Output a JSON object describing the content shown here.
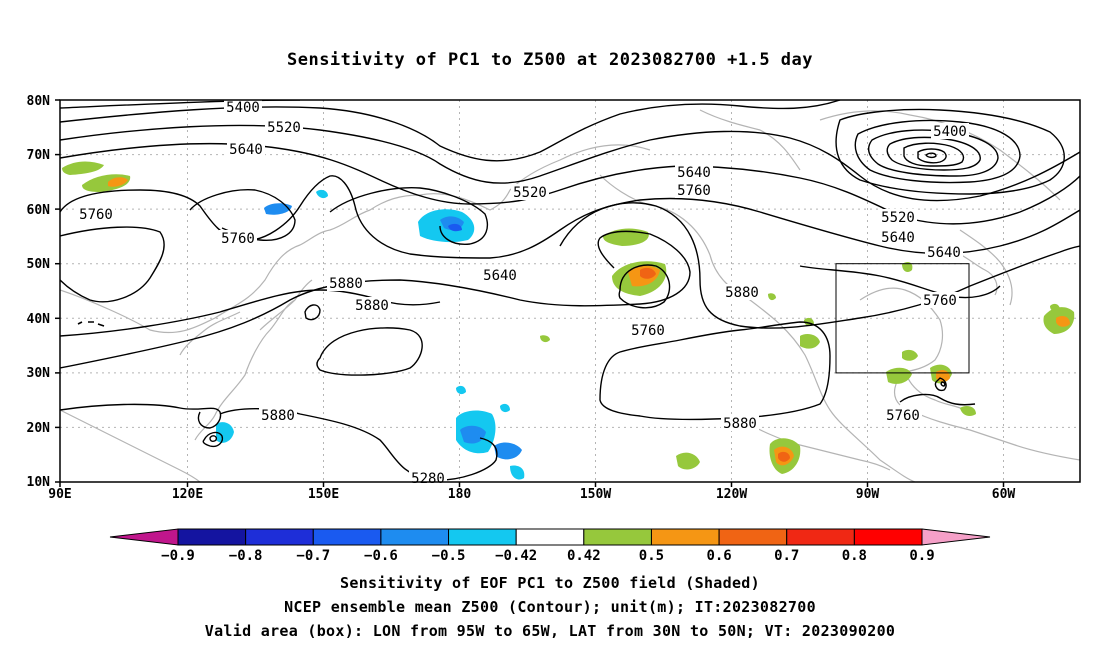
{
  "title": "Sensitivity of PC1 to Z500 at 2023082700 +1.5 day",
  "map": {
    "lat_labels": [
      "80N",
      "70N",
      "60N",
      "50N",
      "40N",
      "30N",
      "20N",
      "10N"
    ],
    "lon_labels": [
      "90E",
      "120E",
      "150E",
      "180",
      "150W",
      "120W",
      "90W",
      "60W"
    ],
    "valid_box_label": "Valid area (box)"
  },
  "contour_labels": [
    "5400",
    "5520",
    "5640",
    "5760",
    "5520",
    "5640",
    "5760",
    "5760",
    "5880",
    "5640",
    "5760",
    "5640",
    "5760",
    "5880",
    "5880",
    "5880",
    "5880",
    "5280",
    "5400",
    "5520",
    "5640",
    "5760",
    "5880"
  ],
  "colorbar": {
    "labels": [
      "-0.9",
      "-0.8",
      "-0.7",
      "-0.6",
      "-0.5",
      "-0.42",
      "0.42",
      "0.5",
      "0.6",
      "0.7",
      "0.8",
      "0.9"
    ],
    "colors": [
      "#c0168c",
      "#1414a0",
      "#1e2ed8",
      "#1a5af0",
      "#1e8cf0",
      "#14c8f0",
      "#ffffff",
      "#96c83c",
      "#f59614",
      "#f06414",
      "#f02814",
      "#ff0000",
      "#f5a0c8"
    ]
  },
  "captions": [
    "Sensitivity of EOF PC1 to Z500 field (Shaded)",
    "NCEP ensemble mean Z500 (Contour); unit(m); IT:2023082700",
    "Valid area (box): LON from 95W to 65W, LAT from 30N to 50N; VT: 2023090200"
  ]
}
